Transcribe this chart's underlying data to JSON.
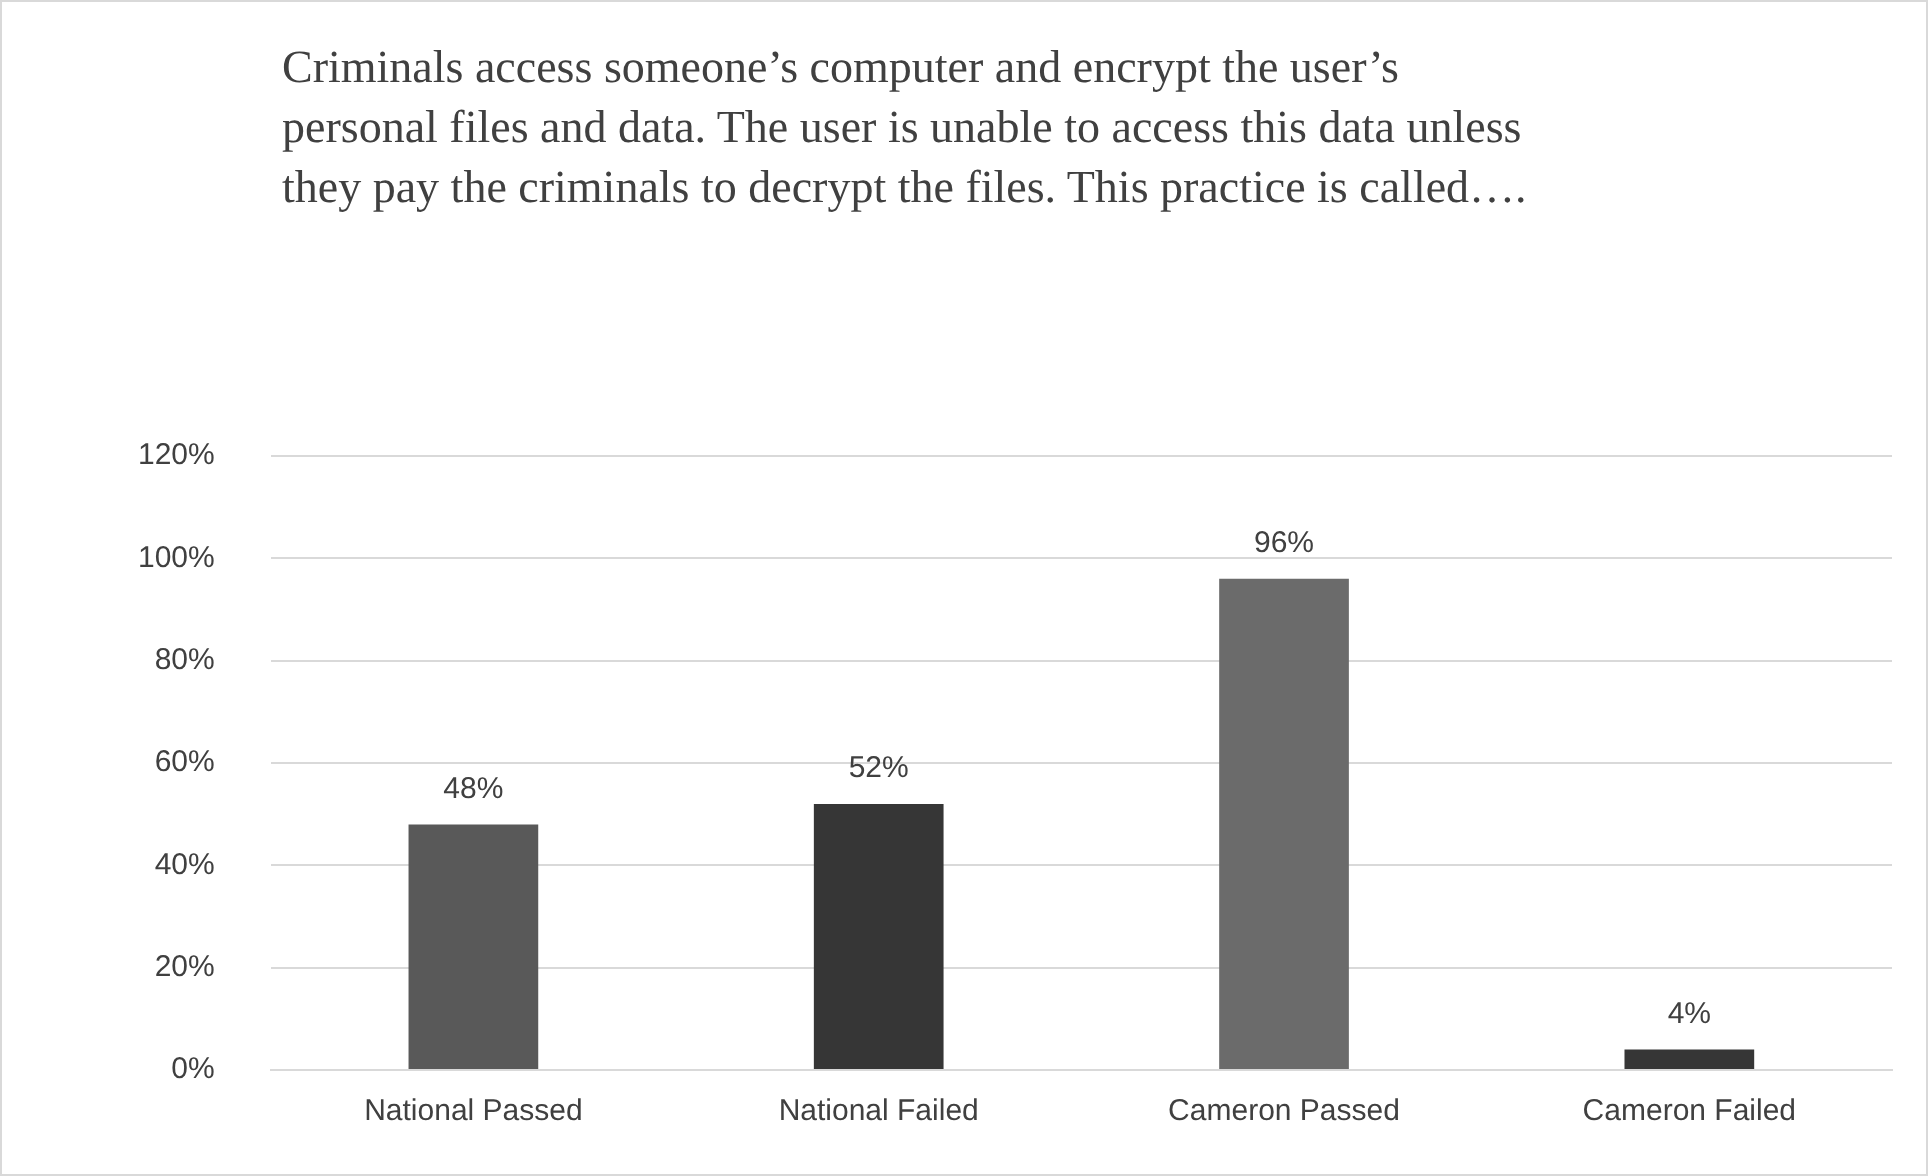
{
  "chart_data": {
    "type": "bar",
    "title": "Criminals access someone’s computer and encrypt the user’s personal files and data. The user is unable to access this data unless they pay the criminals to decrypt the files. This practice is called….",
    "categories": [
      "National Passed",
      "National Failed",
      "Cameron Passed",
      "Cameron Failed"
    ],
    "values": [
      48,
      52,
      96,
      4
    ],
    "colors": [
      "#595959",
      "#363636",
      "#6b6b6b",
      "#363636"
    ],
    "value_labels": [
      "48%",
      "52%",
      "96%",
      "4%"
    ],
    "ylim": [
      0,
      120
    ],
    "yticks": [
      {
        "value": 0,
        "label": "0%"
      },
      {
        "value": 20,
        "label": "20%"
      },
      {
        "value": 40,
        "label": "40%"
      },
      {
        "value": 60,
        "label": "60%"
      },
      {
        "value": 80,
        "label": "80%"
      },
      {
        "value": 100,
        "label": "100%"
      },
      {
        "value": 120,
        "label": "120%"
      }
    ],
    "grid": "y",
    "legend": false
  }
}
